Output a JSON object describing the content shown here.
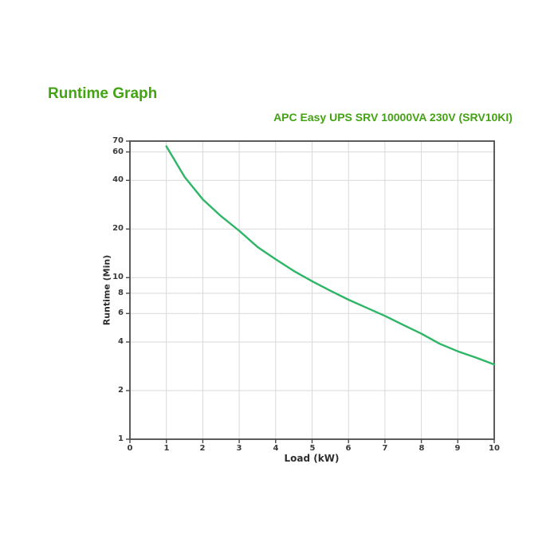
{
  "page": {
    "heading": "Runtime Graph"
  },
  "colors": {
    "heading_green": "#44a314",
    "chart_title_green": "#44a314",
    "curve_green": "#2eb566",
    "grid_gray": "#d9d9d9",
    "axis_gray": "#4a4a4a"
  },
  "chart_data": {
    "type": "line",
    "title": "APC Easy UPS SRV 10000VA 230V (SRV10KI)",
    "xlabel": "Load (kW)",
    "ylabel": "Runtime (Min)",
    "y_scale": "log",
    "xlim": [
      0,
      10
    ],
    "ylim": [
      1,
      70
    ],
    "x_ticks": [
      0,
      1,
      2,
      3,
      4,
      5,
      6,
      7,
      8,
      9,
      10
    ],
    "y_ticks": [
      70,
      60,
      40,
      20,
      10,
      8,
      6,
      4,
      2,
      1
    ],
    "grid": true,
    "legend": "none",
    "series": [
      {
        "name": "Runtime",
        "color": "#2eb566",
        "x": [
          1,
          1.5,
          2,
          2.5,
          3,
          3.5,
          4,
          4.5,
          5,
          5.5,
          6,
          6.5,
          7,
          7.5,
          8,
          8.5,
          9,
          9.5,
          10
        ],
        "y": [
          65,
          42,
          30.5,
          24,
          19.5,
          15.5,
          13,
          11,
          9.5,
          8.3,
          7.3,
          6.5,
          5.8,
          5.1,
          4.5,
          3.9,
          3.5,
          3.2,
          2.9
        ]
      }
    ]
  }
}
